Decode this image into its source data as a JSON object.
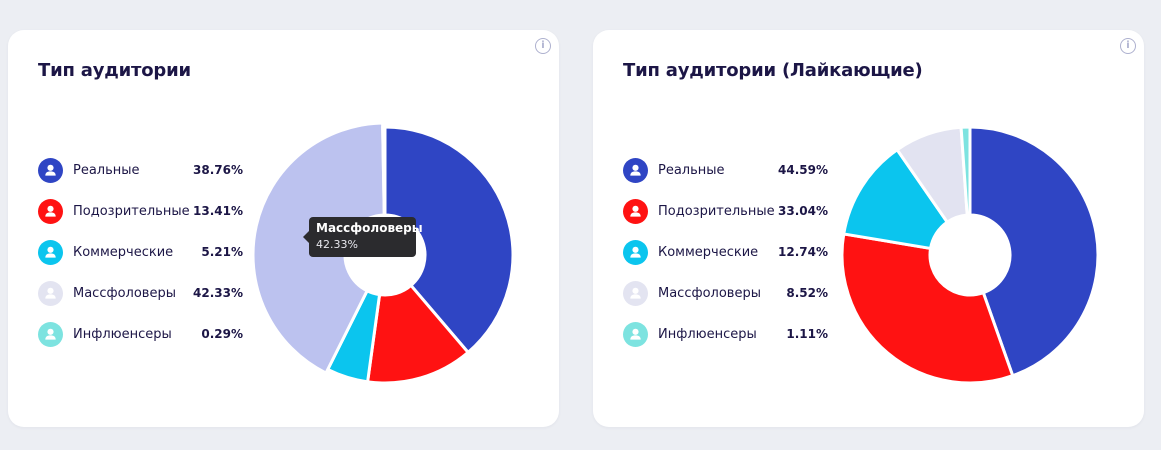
{
  "chart_data": [
    {
      "type": "pie",
      "title": "Тип аудитории",
      "categories": [
        "Реальные",
        "Подозрительные",
        "Коммерческие",
        "Массфоловеры",
        "Инфлюенсеры"
      ],
      "values": [
        38.76,
        13.41,
        5.21,
        42.33,
        0.29
      ],
      "labels": [
        "38.76%",
        "13.41%",
        "5.21%",
        "42.33%",
        "0.29%"
      ],
      "colors": [
        "#2f45c4",
        "#ff1212",
        "#0bc5ee",
        "#bcc2ef",
        "#7de3e0"
      ],
      "dot_colors": [
        "#2f45c4",
        "#ff1212",
        "#0bc5ee",
        "#e3e4f1",
        "#7de3e0"
      ],
      "tooltip": {
        "title": "Массфоловеры",
        "value": "42.33%"
      }
    },
    {
      "type": "pie",
      "title": "Тип аудитории (Лайкающие)",
      "categories": [
        "Реальные",
        "Подозрительные",
        "Коммерческие",
        "Массфоловеры",
        "Инфлюенсеры"
      ],
      "values": [
        44.59,
        33.04,
        12.74,
        8.52,
        1.11
      ],
      "labels": [
        "44.59%",
        "33.04%",
        "12.74%",
        "8.52%",
        "1.11%"
      ],
      "colors": [
        "#2f45c4",
        "#ff1212",
        "#0bc5ee",
        "#e2e3f1",
        "#7de3e0"
      ],
      "dot_colors": [
        "#2f45c4",
        "#ff1212",
        "#0bc5ee",
        "#e3e4f1",
        "#7de3e0"
      ]
    }
  ],
  "icons": {
    "info": "info-icon",
    "legend": "user-icon"
  },
  "info_symbol": "i"
}
